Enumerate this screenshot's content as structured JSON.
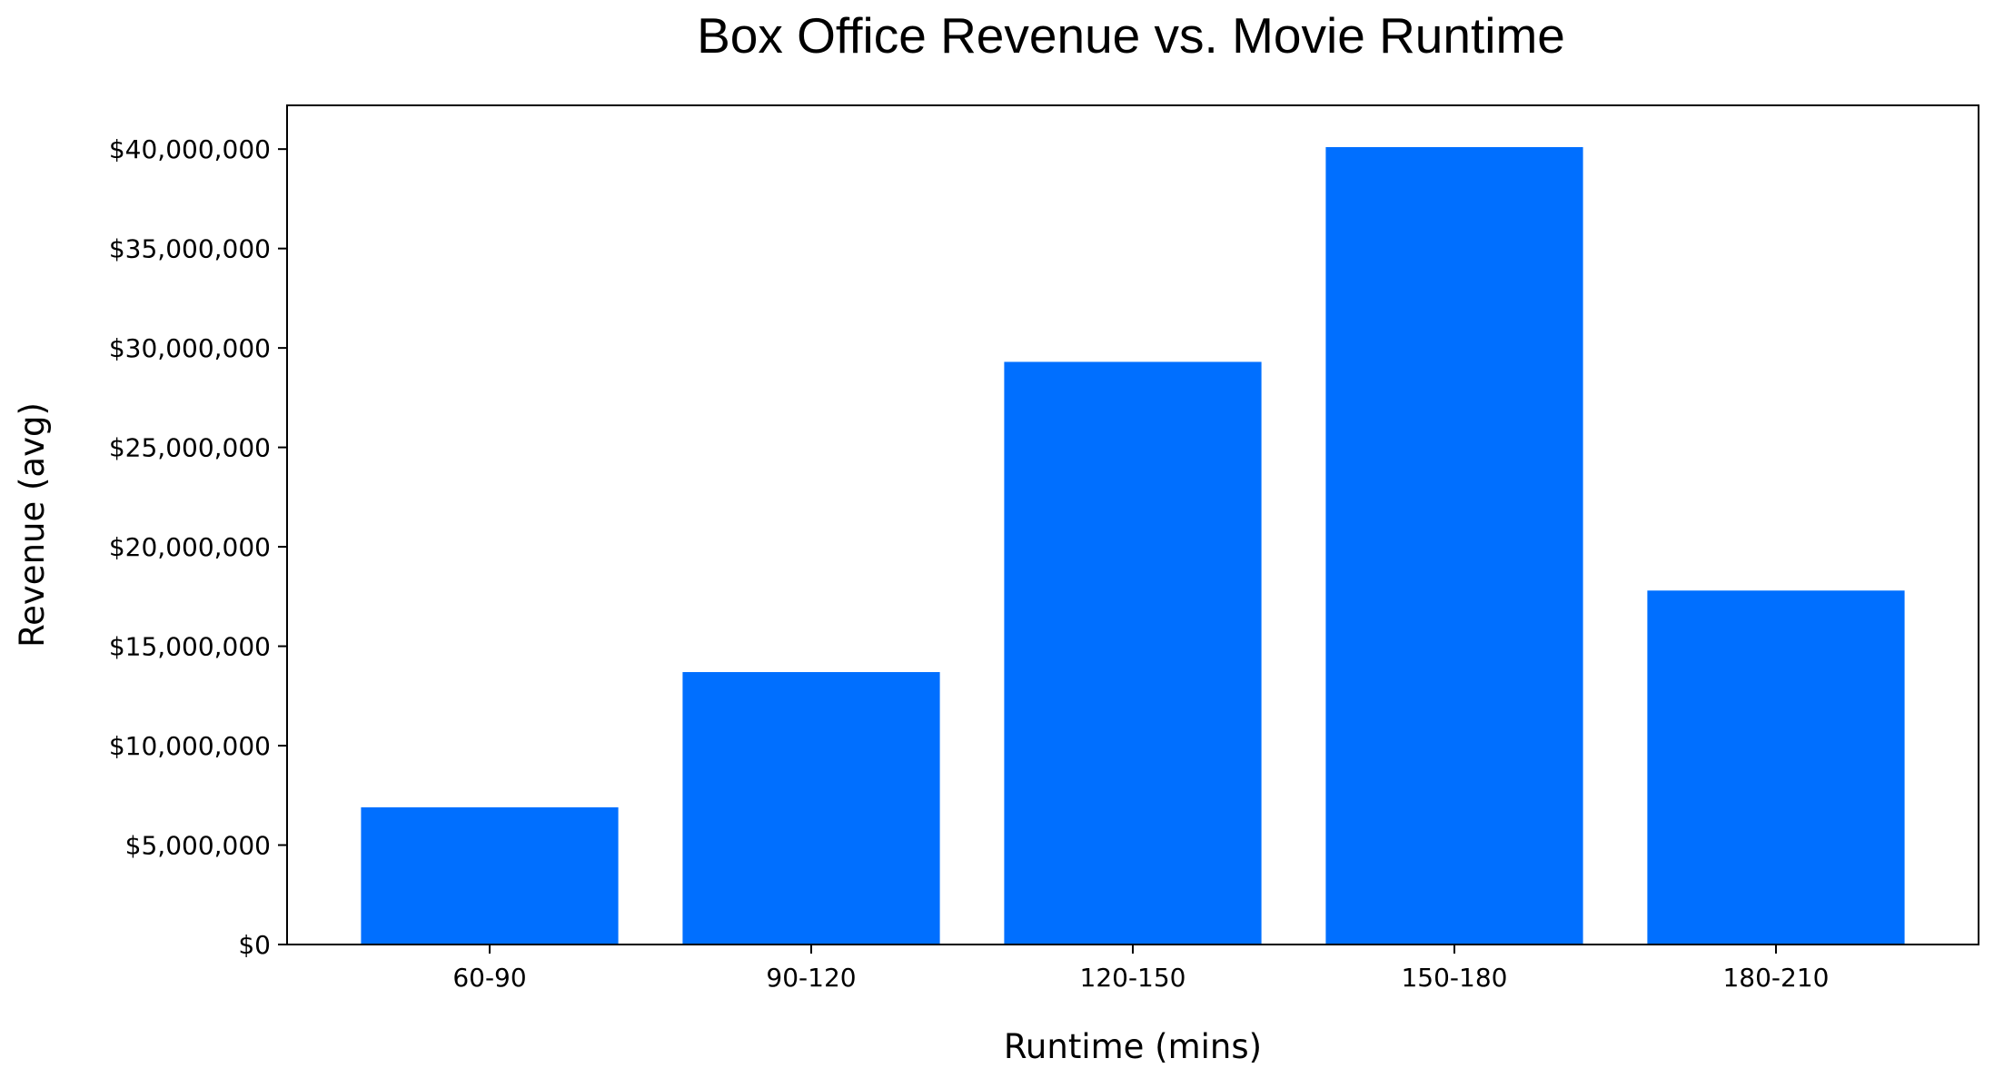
{
  "chart_data": {
    "type": "bar",
    "title": "Box Office Revenue vs. Movie Runtime",
    "xlabel": "Runtime (mins)",
    "ylabel": "Revenue (avg)",
    "categories": [
      "60-90",
      "90-120",
      "120-150",
      "150-180",
      "180-210"
    ],
    "values": [
      6900000,
      13700000,
      29300000,
      40100000,
      17800000
    ],
    "ylim": [
      0,
      42200000
    ],
    "yticks": [
      0,
      5000000,
      10000000,
      15000000,
      20000000,
      25000000,
      30000000,
      35000000,
      40000000
    ],
    "ytick_labels": [
      "$0",
      "$5,000,000",
      "$10,000,000",
      "$15,000,000",
      "$20,000,000",
      "$25,000,000",
      "$30,000,000",
      "$35,000,000",
      "$40,000,000"
    ],
    "bar_color": "#006fff",
    "grid": false,
    "legend": "none"
  }
}
